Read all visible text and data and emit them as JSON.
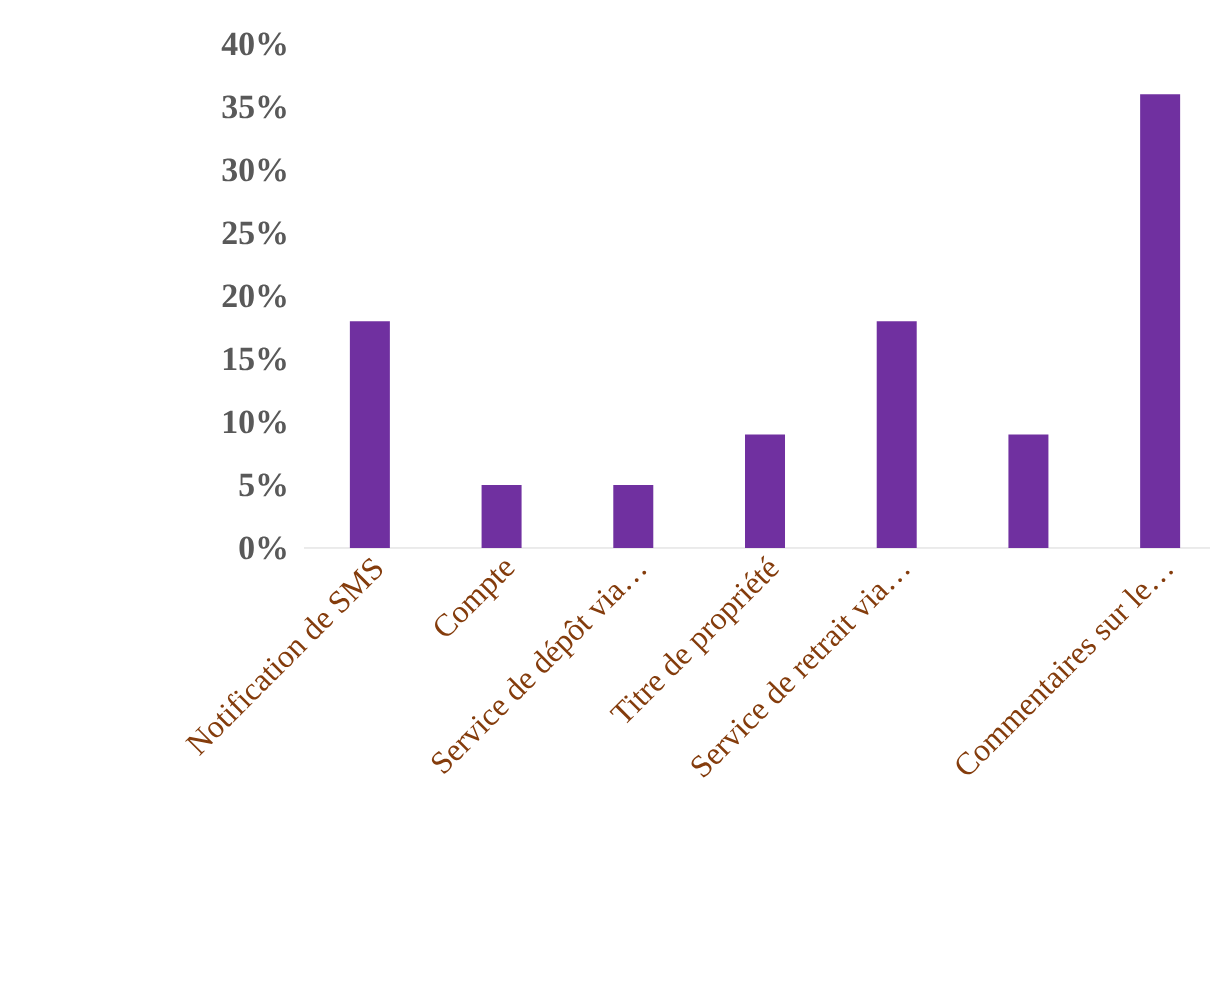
{
  "chart_data": {
    "type": "bar",
    "color": "#7030a0",
    "categories": [
      "Notification de SMS",
      "Compte",
      "Service de dépôt via…",
      "Titre de propriété",
      "Service de retrait via…",
      null,
      "Commentaires sur le…"
    ],
    "values": [
      18,
      5,
      5,
      9,
      18,
      9,
      36
    ],
    "ylim": [
      0,
      40
    ],
    "yticks": [
      {
        "value": 0,
        "label": "0%"
      },
      {
        "value": 5,
        "label": "5%"
      },
      {
        "value": 10,
        "label": "10%"
      },
      {
        "value": 15,
        "label": "15%"
      },
      {
        "value": 20,
        "label": "20%"
      },
      {
        "value": 25,
        "label": "25%"
      },
      {
        "value": 30,
        "label": "30%"
      },
      {
        "value": 35,
        "label": "35%"
      },
      {
        "value": 40,
        "label": "40%"
      }
    ],
    "grid": false
  }
}
